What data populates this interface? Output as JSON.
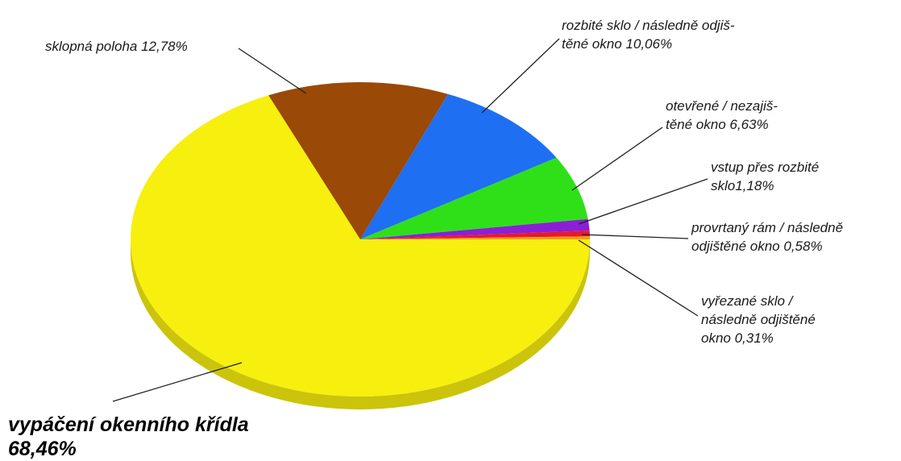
{
  "chart_data": {
    "type": "pie",
    "slices": [
      {
        "name": "vypáčení okenního křídla",
        "value": 68.46,
        "label_lines": [
          "vypáčení okenního křídla",
          "68,46%"
        ],
        "color": "#f7ef0e"
      },
      {
        "name": "sklopná poloha",
        "value": 12.78,
        "label_lines": [
          "sklopná poloha 12,78%"
        ],
        "color": "#9a4906"
      },
      {
        "name": "rozbité sklo / následně odjištěné okno",
        "value": 10.06,
        "label_lines": [
          "rozbité sklo / následně odjiš-",
          "těné okno 10,06%"
        ],
        "color": "#1f6ff2"
      },
      {
        "name": "otevřené / nezajištěné okno",
        "value": 6.63,
        "label_lines": [
          "otevřené / nezajiš-",
          "těné okno 6,63%"
        ],
        "color": "#2fe019"
      },
      {
        "name": "vstup přes rozbité sklo",
        "value": 1.18,
        "label_lines": [
          "vstup přes rozbité",
          "sklo1,18%"
        ],
        "color": "#8b1fd6"
      },
      {
        "name": "provrtaný rám / následně odjištěné okno",
        "value": 0.58,
        "label_lines": [
          "provrtaný rám / následně",
          "odjištěné okno 0,58%"
        ],
        "color": "#e8192c"
      },
      {
        "name": "vyřezané sklo / následně odjištěné okno",
        "value": 0.31,
        "label_lines": [
          "vyřezané sklo /",
          "následně odjištěné",
          "okno 0,31%"
        ],
        "color": "#f29b1c"
      }
    ]
  }
}
